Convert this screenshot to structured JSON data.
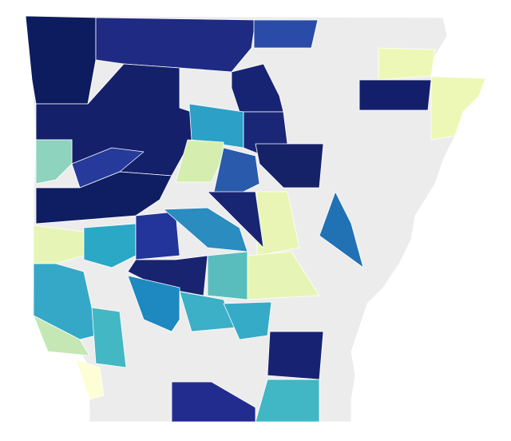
{
  "map": {
    "background": "#ececec",
    "border": "#ffffff",
    "region_colors": [
      "#0d1c5e",
      "#1f2a82",
      "#2a4ca8",
      "#172373",
      "#14206a",
      "#2ca0c6",
      "#1a2777",
      "#152268",
      "#d5eeb0",
      "#2a5aab",
      "#8ed3bd",
      "#263a9c",
      "#0f1d62",
      "#e9f5b4",
      "#2171b5",
      "#e6f5b5",
      "#2aa8c5",
      "#23349a",
      "#2b8cc0",
      "#182572",
      "#5abdbd",
      "#e6f5b5",
      "#192470",
      "#1e88c0",
      "#3bb0c7",
      "#36abc7",
      "#35a8c8",
      "#44b7c4",
      "#c5e7b3",
      "#fdfed6",
      "#172372",
      "#222c8f",
      "#41b6c4",
      "#edf8b6",
      "#141f6b",
      "#edf8b6"
    ]
  }
}
